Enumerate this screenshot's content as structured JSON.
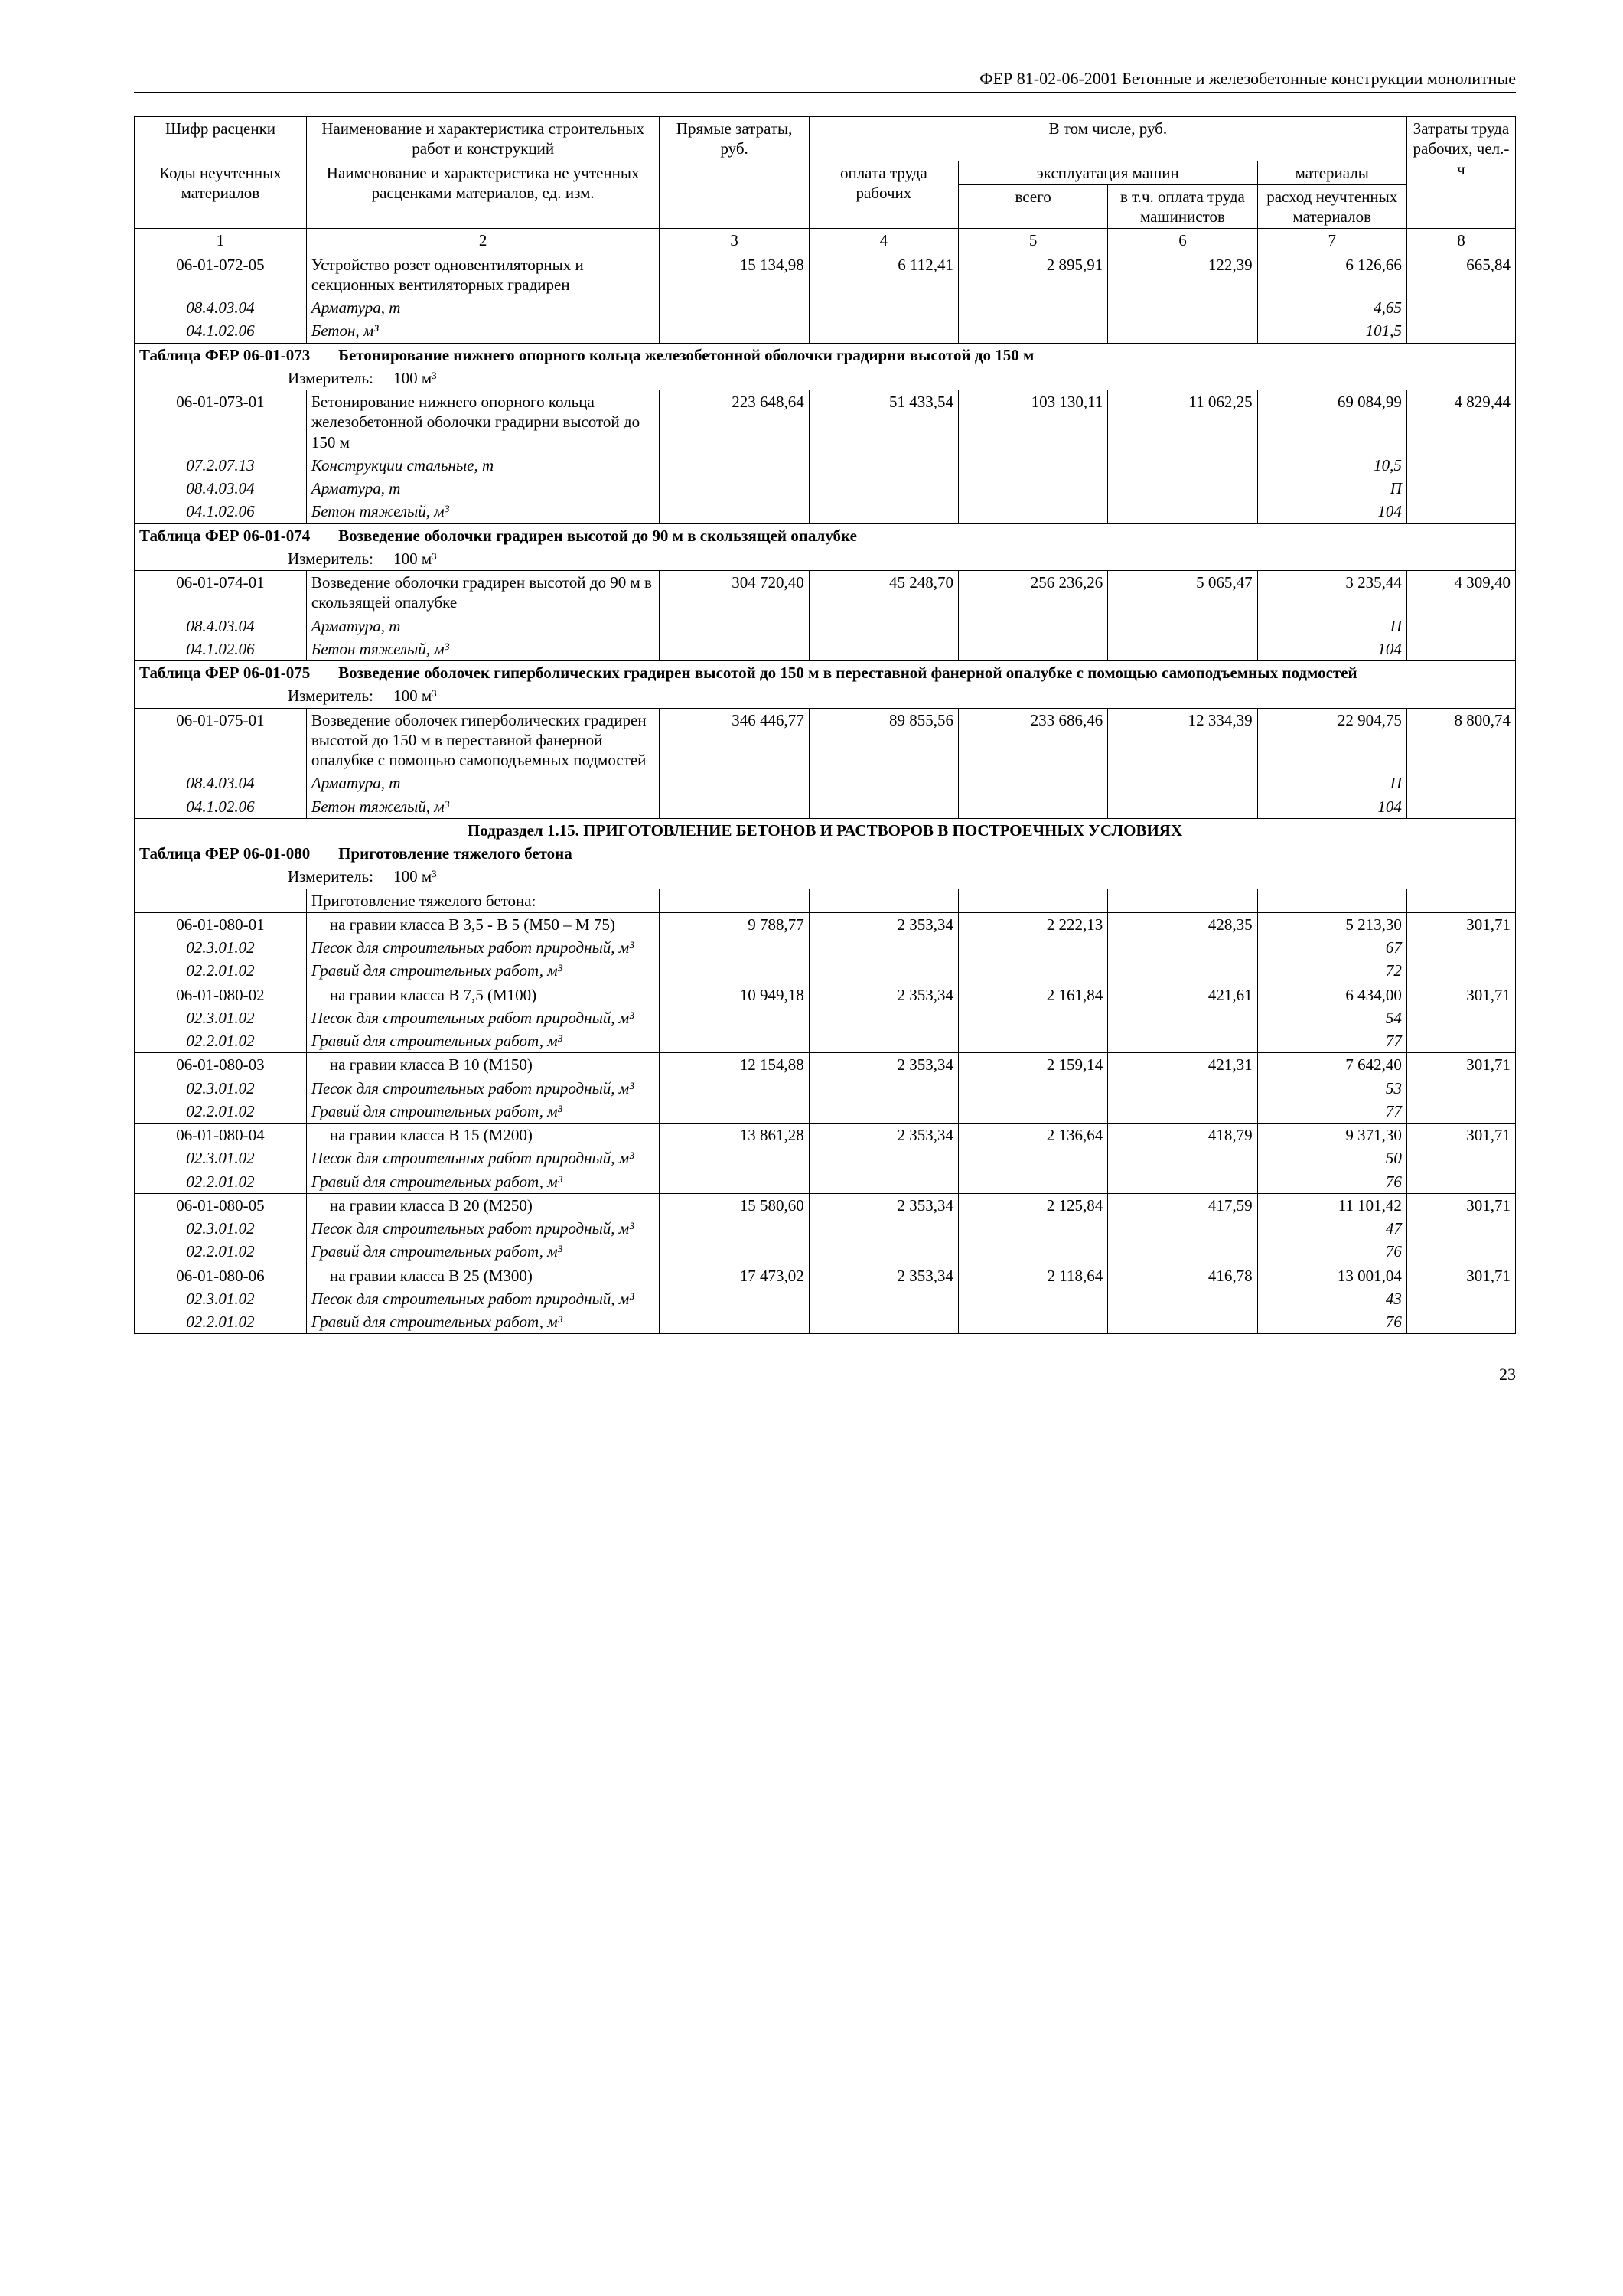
{
  "header": "ФЕР 81-02-06-2001 Бетонные и железобетонные конструкции монолитные",
  "page_num": "23",
  "col_head": {
    "r1_c1": "Шифр расценки",
    "r1_c2": "Наименование и характеристика строительных работ и конструкций",
    "r1_c3": "Прямые затраты, руб.",
    "r1_c4": "В том числе, руб.",
    "r1_c8": "Затраты труда рабочих, чел.-ч",
    "r2_c1": "Коды неучтенных материалов",
    "r2_c2": "Наименование и характеристика не учтенных расценками материалов, ед. изм.",
    "r2_c4": "оплата труда рабочих",
    "r2_c5": "эксплуатация машин",
    "r2_c7": "материалы",
    "r3_c5": "всего",
    "r3_c6": "в т.ч. оплата труда машинистов",
    "r3_c7": "расход неучтенных материалов",
    "n1": "1",
    "n2": "2",
    "n3": "3",
    "n4": "4",
    "n5": "5",
    "n6": "6",
    "n7": "7",
    "n8": "8"
  },
  "r072": {
    "code": "06-01-072-05",
    "name": "Устройство розет одновентиляторных и секционных вентиляторных градирен",
    "v3": "15 134,98",
    "v4": "6 112,41",
    "v5": "2 895,91",
    "v6": "122,39",
    "v7": "6 126,66",
    "v8": "665,84",
    "m1c": "08.4.03.04",
    "m1n": "Арматура, т",
    "m1v": "4,65",
    "m2c": "04.1.02.06",
    "m2n": "Бетон, м³",
    "m2v": "101,5"
  },
  "t073": {
    "title": "Таблица ФЕР 06-01-073",
    "subtitle": "Бетонирование нижнего опорного кольца железобетонной оболочки градирни высотой до 150 м",
    "meas_lbl": "Измеритель:",
    "meas_val": "100 м³",
    "code": "06-01-073-01",
    "name": "Бетонирование нижнего опорного кольца железобетонной оболочки градирни высотой до 150 м",
    "v3": "223 648,64",
    "v4": "51 433,54",
    "v5": "103 130,11",
    "v6": "11 062,25",
    "v7": "69 084,99",
    "v8": "4 829,44",
    "m1c": "07.2.07.13",
    "m1n": "Конструкции стальные, т",
    "m1v": "10,5",
    "m2c": "08.4.03.04",
    "m2n": "Арматура, т",
    "m2v": "П",
    "m3c": "04.1.02.06",
    "m3n": "Бетон тяжелый, м³",
    "m3v": "104"
  },
  "t074": {
    "title": "Таблица ФЕР 06-01-074",
    "subtitle": "Возведение оболочки градирен высотой до 90 м в скользящей опалубке",
    "meas_lbl": "Измеритель:",
    "meas_val": "100 м³",
    "code": "06-01-074-01",
    "name": "Возведение оболочки градирен высотой до 90 м в скользящей опалубке",
    "v3": "304 720,40",
    "v4": "45 248,70",
    "v5": "256 236,26",
    "v6": "5 065,47",
    "v7": "3 235,44",
    "v8": "4 309,40",
    "m1c": "08.4.03.04",
    "m1n": "Арматура, т",
    "m1v": "П",
    "m2c": "04.1.02.06",
    "m2n": "Бетон тяжелый, м³",
    "m2v": "104"
  },
  "t075": {
    "title": "Таблица ФЕР 06-01-075",
    "subtitle": "Возведение оболочек гиперболических градирен высотой до 150 м в переставной фанерной опалубке с помощью самоподъемных подмостей",
    "meas_lbl": "Измеритель:",
    "meas_val": "100 м³",
    "code": "06-01-075-01",
    "name": "Возведение оболочек гиперболических градирен высотой до 150 м в переставной фанерной опалубке с помощью самоподъемных подмостей",
    "v3": "346 446,77",
    "v4": "89 855,56",
    "v5": "233 686,46",
    "v6": "12 334,39",
    "v7": "22 904,75",
    "v8": "8 800,74",
    "m1c": "08.4.03.04",
    "m1n": "Арматура, т",
    "m1v": "П",
    "m2c": "04.1.02.06",
    "m2n": "Бетон тяжелый, м³",
    "m2v": "104"
  },
  "sec115": "Подраздел 1.15. ПРИГОТОВЛЕНИЕ БЕТОНОВ И РАСТВОРОВ В ПОСТРОЕЧНЫХ УСЛОВИЯХ",
  "t080": {
    "title": "Таблица ФЕР 06-01-080",
    "subtitle": "Приготовление тяжелого бетона",
    "meas_lbl": "Измеритель:",
    "meas_val": "100 м³",
    "group": "Приготовление тяжелого бетона:",
    "r1": {
      "code": "06-01-080-01",
      "name": "на гравии класса В 3,5 - В 5 (М50 – М 75)",
      "v3": "9 788,77",
      "v4": "2 353,34",
      "v5": "2 222,13",
      "v6": "428,35",
      "v7": "5 213,30",
      "v8": "301,71",
      "m1c": "02.3.01.02",
      "m1n": "Песок для строительных работ природный, м³",
      "m1v": "67",
      "m2c": "02.2.01.02",
      "m2n": "Гравий для строительных работ, м³",
      "m2v": "72"
    },
    "r2": {
      "code": "06-01-080-02",
      "name": "на гравии класса В 7,5 (М100)",
      "v3": "10 949,18",
      "v4": "2 353,34",
      "v5": "2 161,84",
      "v6": "421,61",
      "v7": "6 434,00",
      "v8": "301,71",
      "m1c": "02.3.01.02",
      "m1n": "Песок для строительных работ природный, м³",
      "m1v": "54",
      "m2c": "02.2.01.02",
      "m2n": "Гравий для строительных работ, м³",
      "m2v": "77"
    },
    "r3": {
      "code": "06-01-080-03",
      "name": "на гравии класса В 10 (М150)",
      "v3": "12 154,88",
      "v4": "2 353,34",
      "v5": "2 159,14",
      "v6": "421,31",
      "v7": "7 642,40",
      "v8": "301,71",
      "m1c": "02.3.01.02",
      "m1n": "Песок для строительных работ природный, м³",
      "m1v": "53",
      "m2c": "02.2.01.02",
      "m2n": "Гравий для строительных работ, м³",
      "m2v": "77"
    },
    "r4": {
      "code": "06-01-080-04",
      "name": "на гравии класса В 15 (М200)",
      "v3": "13 861,28",
      "v4": "2 353,34",
      "v5": "2 136,64",
      "v6": "418,79",
      "v7": "9 371,30",
      "v8": "301,71",
      "m1c": "02.3.01.02",
      "m1n": "Песок для строительных работ природный, м³",
      "m1v": "50",
      "m2c": "02.2.01.02",
      "m2n": "Гравий для строительных работ, м³",
      "m2v": "76"
    },
    "r5": {
      "code": "06-01-080-05",
      "name": "на гравии класса В 20 (М250)",
      "v3": "15 580,60",
      "v4": "2 353,34",
      "v5": "2 125,84",
      "v6": "417,59",
      "v7": "11 101,42",
      "v8": "301,71",
      "m1c": "02.3.01.02",
      "m1n": "Песок для строительных работ природный, м³",
      "m1v": "47",
      "m2c": "02.2.01.02",
      "m2n": "Гравий для строительных работ, м³",
      "m2v": "76"
    },
    "r6": {
      "code": "06-01-080-06",
      "name": "на гравии класса В 25 (М300)",
      "v3": "17 473,02",
      "v4": "2 353,34",
      "v5": "2 118,64",
      "v6": "416,78",
      "v7": "13 001,04",
      "v8": "301,71",
      "m1c": "02.3.01.02",
      "m1n": "Песок для строительных работ природный, м³",
      "m1v": "43",
      "m2c": "02.2.01.02",
      "m2n": "Гравий для строительных работ, м³",
      "m2v": "76"
    }
  }
}
